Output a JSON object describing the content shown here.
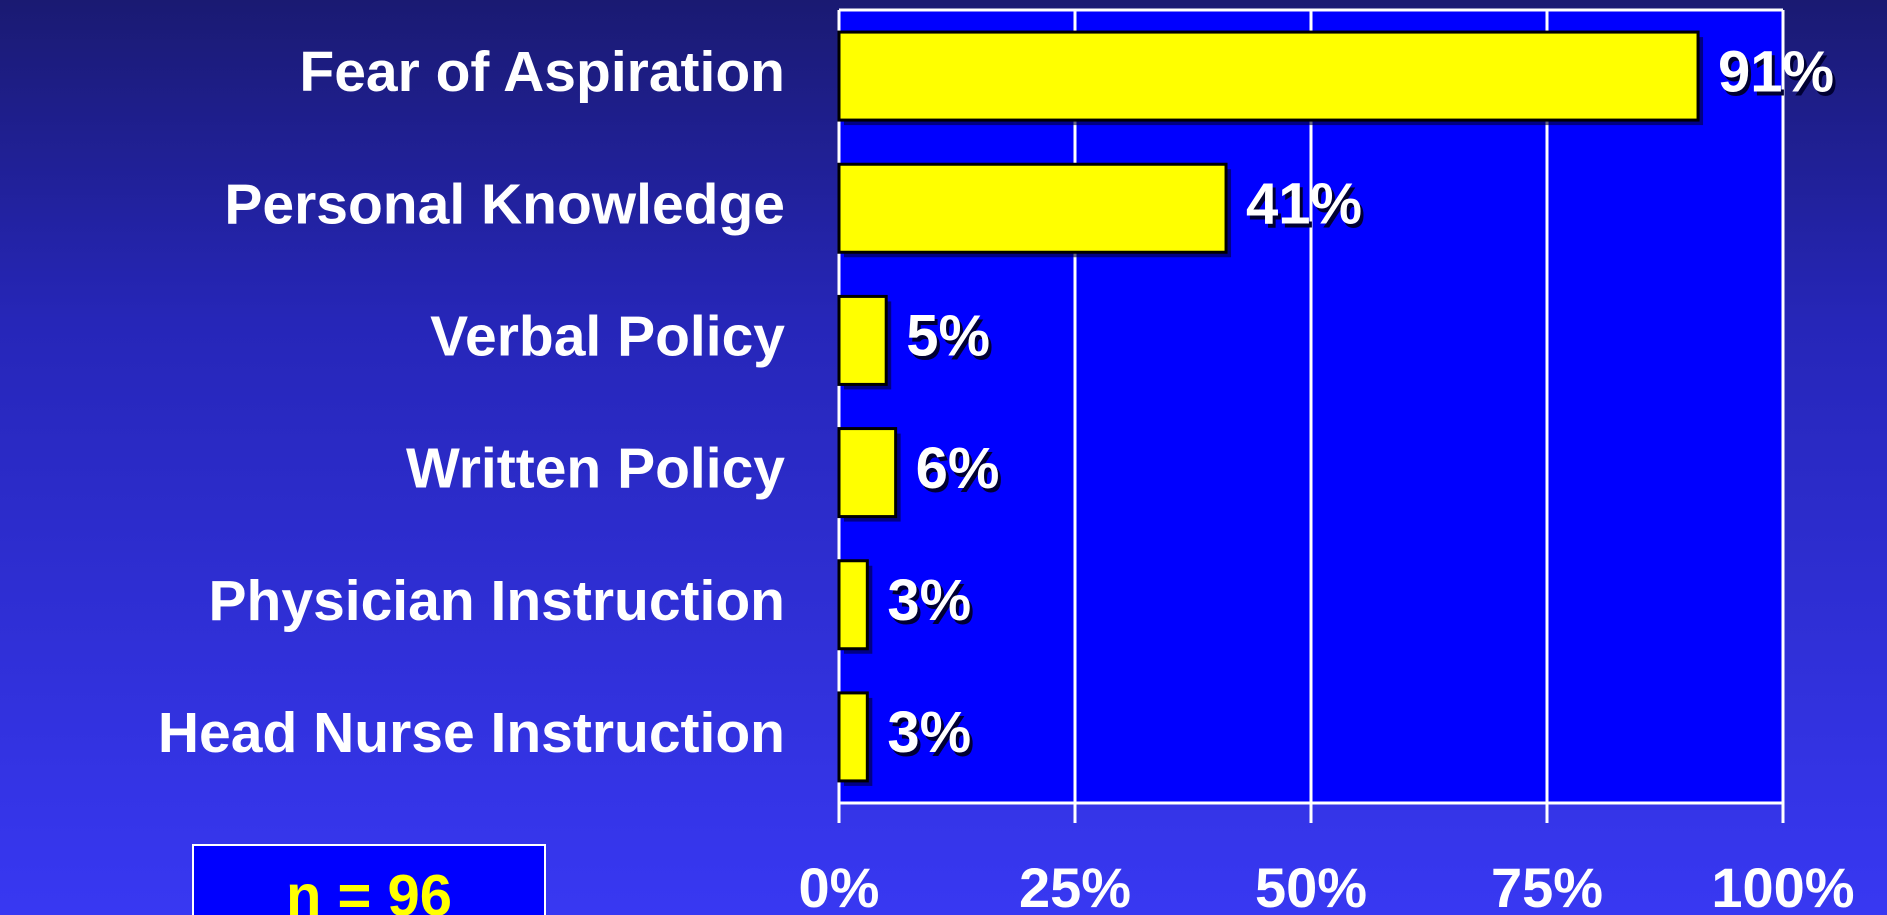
{
  "chart_data": {
    "type": "bar",
    "orientation": "horizontal",
    "categories": [
      "Fear of Aspiration",
      "Personal Knowledge",
      "Verbal Policy",
      "Written Policy",
      "Physician Instruction",
      "Head Nurse Instruction"
    ],
    "values": [
      91,
      41,
      5,
      6,
      3,
      3
    ],
    "value_labels": [
      "91%",
      "41%",
      "5%",
      "6%",
      "3%",
      "3%"
    ],
    "color": "#ffff00",
    "xlim": [
      0,
      100
    ],
    "xticks": [
      {
        "value": 0,
        "label": "0%"
      },
      {
        "value": 25,
        "label": "25%"
      },
      {
        "value": 50,
        "label": "50%"
      },
      {
        "value": 75,
        "label": "75%"
      },
      {
        "value": 100,
        "label": "100%"
      }
    ],
    "grid": true,
    "annotation": "n = 96"
  }
}
